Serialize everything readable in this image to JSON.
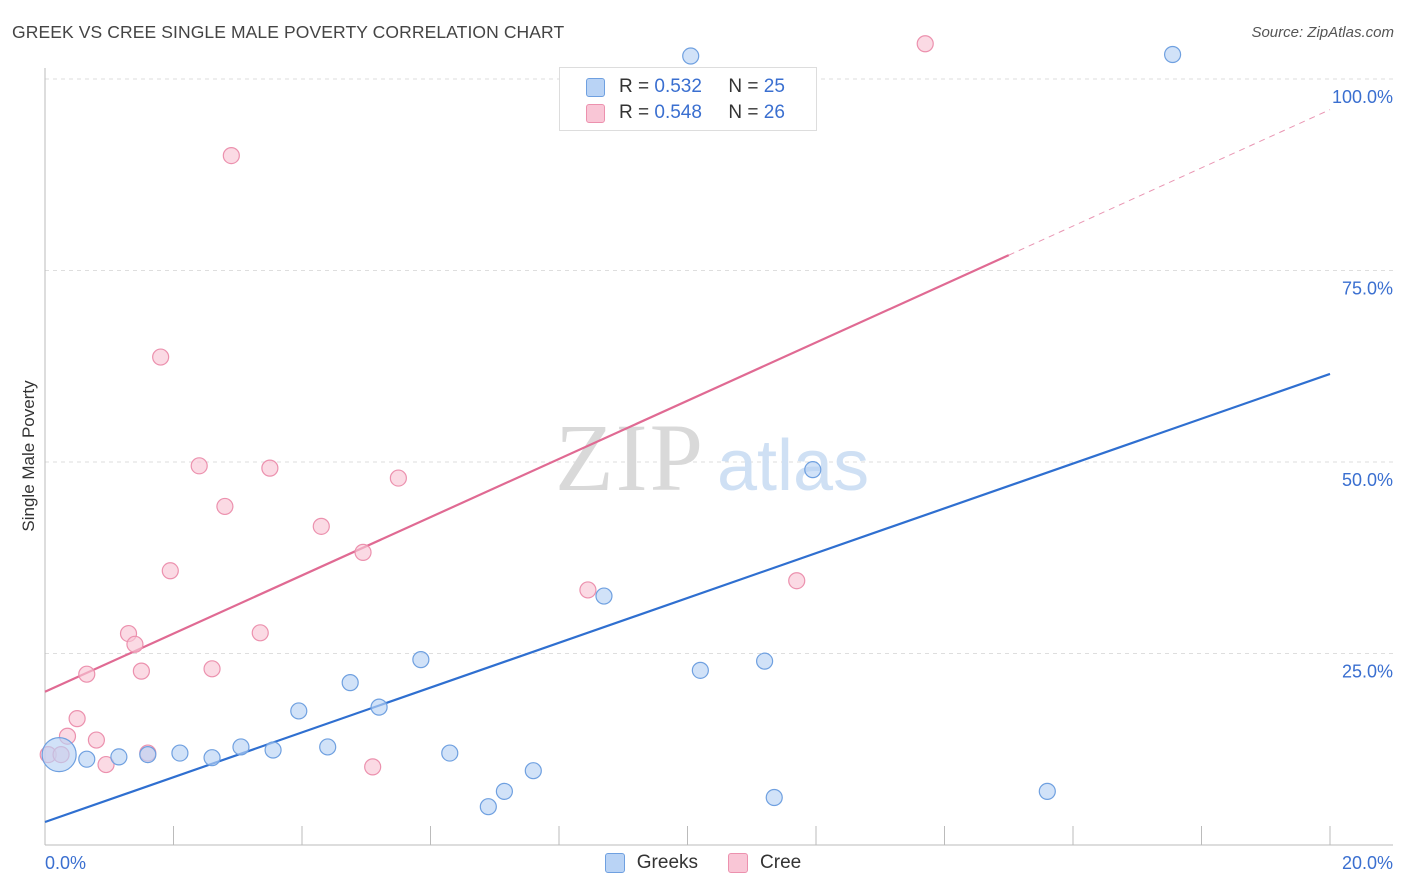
{
  "title": "GREEK VS CREE SINGLE MALE POVERTY CORRELATION CHART",
  "source": "Source: ZipAtlas.com",
  "watermark": {
    "zip": "ZIP",
    "atlas": "atlas"
  },
  "legend_top": [
    {
      "r_label": "R =",
      "r_value": "0.532",
      "n_label": "N =",
      "n_value": "25"
    },
    {
      "r_label": "R =",
      "r_value": "0.548",
      "n_label": "N =",
      "n_value": "26"
    }
  ],
  "colors": {
    "greeks_fill": "#b9d3f5",
    "greeks_stroke": "#6fa0e0",
    "greeks_line": "#2f6fd0",
    "cree_fill": "#f9c6d6",
    "cree_stroke": "#ec91ae",
    "cree_line": "#e06a93",
    "axis_label": "#3a6fd0"
  },
  "chart_data": {
    "type": "scatter",
    "title": "GREEK VS CREE SINGLE MALE POVERTY CORRELATION CHART",
    "xlabel": "",
    "ylabel": "Single Male Poverty",
    "xlim": [
      0,
      20
    ],
    "ylim": [
      0,
      100
    ],
    "x_tick_labels": [
      "0.0%",
      "20.0%"
    ],
    "y_tick_labels": [
      "100.0%",
      "75.0%",
      "50.0%",
      "25.0%"
    ],
    "y_ticks": [
      100,
      75,
      50,
      25
    ],
    "grid": true,
    "legend_position": "bottom",
    "series": [
      {
        "name": "Greeks",
        "r": 0.532,
        "n": 25,
        "points": [
          [
            0.22,
            11.8
          ],
          [
            0.65,
            11.2
          ],
          [
            1.15,
            11.5
          ],
          [
            1.6,
            11.8
          ],
          [
            2.1,
            12.0
          ],
          [
            2.6,
            11.4
          ],
          [
            3.05,
            12.8
          ],
          [
            3.55,
            12.4
          ],
          [
            3.95,
            17.5
          ],
          [
            4.4,
            12.8
          ],
          [
            4.75,
            21.2
          ],
          [
            5.2,
            18.0
          ],
          [
            5.85,
            24.2
          ],
          [
            6.3,
            12.0
          ],
          [
            6.9,
            5.0
          ],
          [
            7.15,
            7.0
          ],
          [
            7.6,
            9.7
          ],
          [
            8.7,
            32.5
          ],
          [
            10.05,
            103.0
          ],
          [
            10.2,
            22.8
          ],
          [
            11.2,
            24.0
          ],
          [
            11.35,
            6.2
          ],
          [
            11.95,
            49.0
          ],
          [
            15.6,
            7.0
          ],
          [
            17.55,
            103.2
          ]
        ],
        "trend": [
          [
            0,
            3.0
          ],
          [
            20,
            61.5
          ]
        ]
      },
      {
        "name": "Cree",
        "r": 0.548,
        "n": 26,
        "points": [
          [
            0.05,
            11.8
          ],
          [
            0.25,
            11.8
          ],
          [
            0.35,
            14.2
          ],
          [
            0.5,
            16.5
          ],
          [
            0.65,
            22.3
          ],
          [
            0.8,
            13.7
          ],
          [
            0.95,
            10.5
          ],
          [
            1.3,
            27.6
          ],
          [
            1.4,
            26.2
          ],
          [
            1.5,
            22.7
          ],
          [
            1.6,
            12.0
          ],
          [
            1.8,
            63.7
          ],
          [
            1.95,
            35.8
          ],
          [
            2.4,
            49.5
          ],
          [
            2.6,
            23.0
          ],
          [
            2.8,
            44.2
          ],
          [
            2.9,
            90.0
          ],
          [
            3.35,
            27.7
          ],
          [
            3.5,
            49.2
          ],
          [
            4.3,
            41.6
          ],
          [
            4.95,
            38.2
          ],
          [
            5.1,
            10.2
          ],
          [
            5.5,
            47.9
          ],
          [
            8.45,
            33.3
          ],
          [
            11.7,
            34.5
          ],
          [
            13.7,
            104.6
          ]
        ],
        "trend": [
          [
            0,
            20.0
          ],
          [
            15.0,
            77.0
          ]
        ],
        "trend_extension": [
          [
            15.0,
            77.0
          ],
          [
            20,
            96.0
          ]
        ]
      }
    ]
  },
  "bottom_legend": [
    {
      "label": "Greeks"
    },
    {
      "label": "Cree"
    }
  ]
}
